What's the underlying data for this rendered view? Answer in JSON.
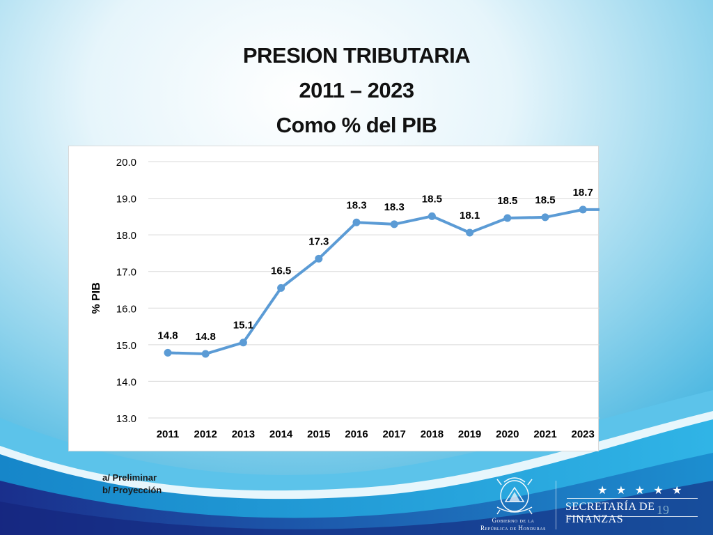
{
  "title": {
    "line1": "PRESION TRIBUTARIA",
    "line2": "2011 – 2023",
    "line3": "Como % del PIB"
  },
  "chart_data": {
    "type": "line",
    "categories": [
      "2011",
      "2012",
      "2013",
      "2014",
      "2015",
      "2016",
      "2017",
      "2018",
      "2019",
      "2020",
      "2021",
      "2023"
    ],
    "series": [
      {
        "values": [
          14.8,
          14.8,
          15.1,
          16.5,
          17.3,
          18.3,
          18.3,
          18.5,
          18.1,
          18.5,
          18.5,
          18.7
        ]
      }
    ],
    "plotted_values": [
      14.78,
      14.75,
      15.06,
      16.55,
      17.35,
      18.34,
      18.29,
      18.51,
      18.06,
      18.46,
      18.48,
      18.69
    ],
    "ylabel": "% PIB",
    "ylim": [
      13.0,
      20.0
    ],
    "yticks": [
      "13.0",
      "14.0",
      "15.0",
      "16.0",
      "17.0",
      "18.0",
      "19.0",
      "20.0"
    ],
    "grid": true,
    "legend": "none",
    "line_color": "#5b9bd5"
  },
  "notes": {
    "a": "a/ Preliminar",
    "b": "b/ Proyección"
  },
  "footer": {
    "page_number": "19",
    "gob_line1": "Gobierno de la",
    "gob_line2": "República de Honduras",
    "stars": "★ ★ ★ ★ ★",
    "secretaria": "SECRETARÍA DE FINANZAS"
  }
}
